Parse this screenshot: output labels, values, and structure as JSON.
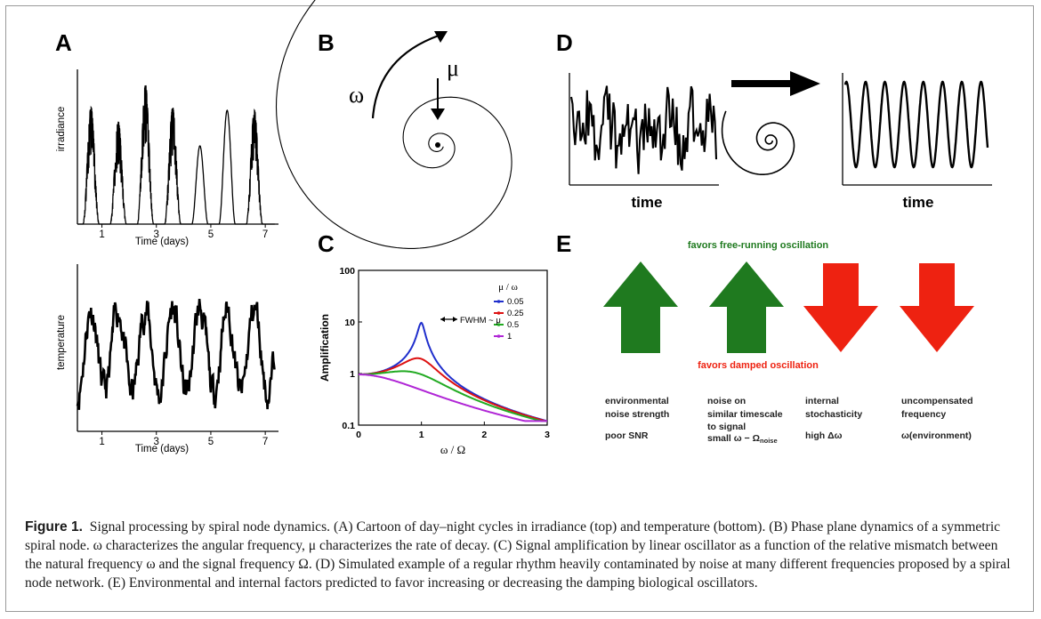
{
  "panels": {
    "A": {
      "letter": "A",
      "top_ylabel": "irradiance",
      "top_xlabel": "Time (days)",
      "bottom_ylabel": "temperature",
      "bottom_xlabel": "Time (days)",
      "xticks": [
        "1",
        "3",
        "5",
        "7"
      ]
    },
    "B": {
      "letter": "B",
      "omega_label": "ω",
      "mu_label": "μ"
    },
    "C": {
      "letter": "C",
      "chart_data": {
        "type": "line",
        "xlabel": "ω / Ω",
        "ylabel": "Amplification",
        "xlim": [
          0,
          3
        ],
        "ylim": [
          0.1,
          100
        ],
        "yscale": "log",
        "xticks": [
          "0",
          "1",
          "2",
          "3"
        ],
        "yticks": [
          "0.1",
          "1",
          "10",
          "100"
        ],
        "legend_title": "μ / ω",
        "legend_placement": "top-right",
        "annotation": "FWHM ~ μ",
        "series": [
          {
            "name": "0.05",
            "color": "#1f2ecc",
            "mu": 0.05
          },
          {
            "name": "0.25",
            "color": "#dd1111",
            "mu": 0.25
          },
          {
            "name": "0.5",
            "color": "#22aa22",
            "mu": 0.5
          },
          {
            "name": "1",
            "color": "#b026d6",
            "mu": 1
          }
        ]
      }
    },
    "D": {
      "letter": "D",
      "left_xlabel": "time",
      "right_xlabel": "time"
    },
    "E": {
      "letter": "E",
      "top_label": "favors free-running oscillation",
      "bottom_label": "favors damped oscillation",
      "up_color": "#1f7a1f",
      "down_color": "#ee2211",
      "factors": [
        {
          "lines": [
            "environmental",
            "noise strength"
          ],
          "condition": "poor SNR",
          "arrow": "up"
        },
        {
          "lines": [
            "noise on",
            "similar timescale",
            "to signal"
          ],
          "condition": "small ω − Ω",
          "condition_sub": "noise",
          "arrow": "up"
        },
        {
          "lines": [
            "internal",
            "stochasticity"
          ],
          "condition": "high Δω",
          "arrow": "down"
        },
        {
          "lines": [
            "uncompensated",
            "frequency"
          ],
          "condition": "ω(environment)",
          "arrow": "down"
        }
      ]
    }
  },
  "caption": {
    "label": "Figure 1.",
    "text": "Signal processing by spiral node dynamics. (A) Cartoon of day–night cycles in irradiance (top) and temperature (bottom). (B) Phase plane dynamics of a symmetric spiral node. ω characterizes the angular frequency, μ characterizes the rate of decay. (C) Signal amplification by linear oscillator as a function of the relative mismatch between the natural frequency ω and the signal frequency Ω. (D) Simulated example of a regular rhythm heavily contaminated by noise at many different frequencies proposed by a spiral node network. (E) Environmental and internal factors predicted to favor increasing or decreasing the damping biological oscillators."
  }
}
